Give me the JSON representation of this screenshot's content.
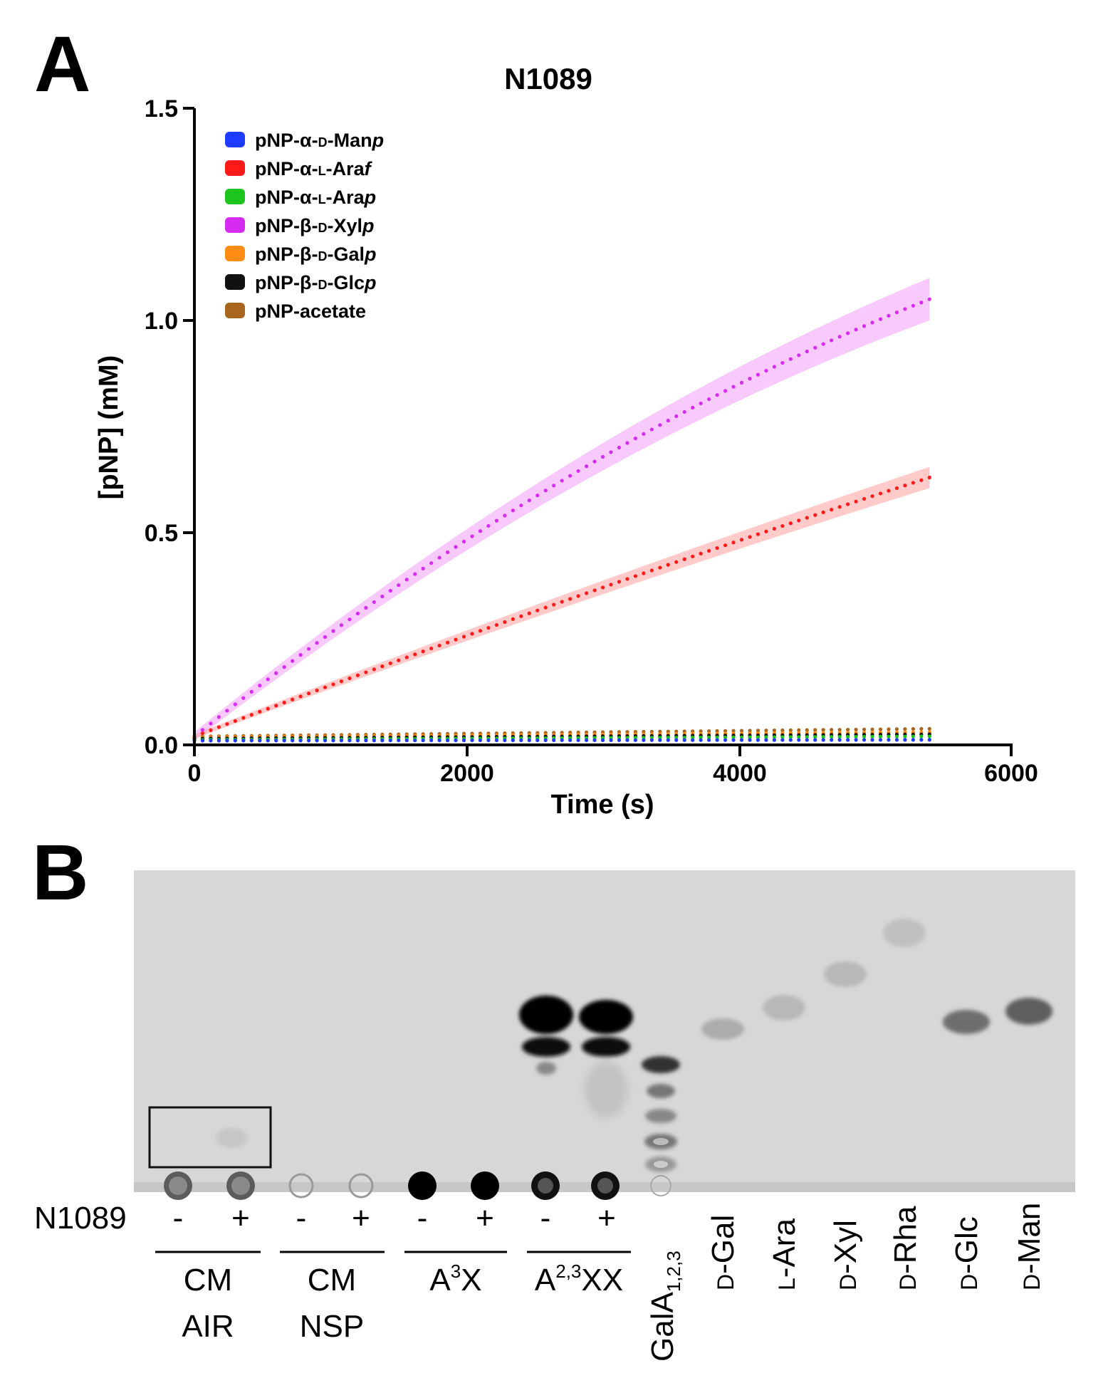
{
  "panel_a": {
    "letter": "A",
    "title": "N1089",
    "xlabel": "Time (s)",
    "ylabel": "[pNP] (mM)",
    "xticks": [
      "0",
      "2000",
      "4000",
      "6000"
    ],
    "yticks": [
      "0.0",
      "0.5",
      "1.0",
      "1.5"
    ]
  },
  "chart_data": {
    "type": "scatter",
    "title": "N1089",
    "xlabel": "Time (s)",
    "ylabel": "[pNP] (mM)",
    "xlim": [
      0,
      6000
    ],
    "ylim": [
      0,
      1.5
    ],
    "x_end": 5400,
    "legend_position": "top-left",
    "series": [
      {
        "name": "pNP-α-D-Manp",
        "parts": [
          "pNP-α-",
          "D",
          "-Man",
          "p",
          ""
        ],
        "color": "#1f3bff",
        "start": 0.01,
        "end": 0.012,
        "band": 0.003,
        "band_color": "#1f3bff",
        "curve": 0
      },
      {
        "name": "pNP-α-L-Araf",
        "parts": [
          "pNP-α-",
          "L",
          "-Ara",
          "f",
          ""
        ],
        "color": "#ff1a1a",
        "start": 0.02,
        "end": 0.63,
        "band": 0.025,
        "band_color": "#ff9e9e",
        "curve": 0.04
      },
      {
        "name": "pNP-α-L-Arap",
        "parts": [
          "pNP-α-",
          "L",
          "-Ara",
          "p",
          ""
        ],
        "color": "#1ec41e",
        "start": 0.012,
        "end": 0.02,
        "band": 0.003,
        "band_color": "#1ec41e",
        "curve": 0
      },
      {
        "name": "pNP-β-D-Xylp",
        "parts": [
          "pNP-β-",
          "D",
          "-Xyl",
          "p",
          ""
        ],
        "color": "#d62bf0",
        "start": 0.02,
        "end": 1.05,
        "band": 0.05,
        "band_color": "#f29cf7",
        "curve": 0.17
      },
      {
        "name": "pNP-β-D-Galp",
        "parts": [
          "pNP-β-",
          "D",
          "-Gal",
          "p",
          ""
        ],
        "color": "#ff8c14",
        "start": 0.018,
        "end": 0.03,
        "band": 0.003,
        "band_color": "#ff8c14",
        "curve": 0
      },
      {
        "name": "pNP-β-D-Glcp",
        "parts": [
          "pNP-β-",
          "D",
          "-Glc",
          "p",
          ""
        ],
        "color": "#111111",
        "start": 0.015,
        "end": 0.025,
        "band": 0.003,
        "band_color": "#111111",
        "curve": 0
      },
      {
        "name": "pNP-acetate",
        "parts": [
          "pNP-acetate",
          "",
          "",
          "",
          ""
        ],
        "color": "#a8651e",
        "start": 0.02,
        "end": 0.038,
        "band": 0.004,
        "band_color": "#a8651e",
        "curve": 0
      }
    ]
  },
  "panel_b": {
    "letter": "B",
    "enzyme_label": "N1089",
    "lane_signs": [
      "-",
      "+",
      "-",
      "+",
      "-",
      "+",
      "-",
      "+"
    ],
    "groups": [
      {
        "line1": "CM",
        "line2": "AIR"
      },
      {
        "line1": "CM",
        "line2": "NSP"
      },
      {
        "base": "A",
        "sup": "3",
        "rest": "X"
      },
      {
        "base": "A",
        "sup": "2,3",
        "rest": "XX"
      }
    ],
    "standards": [
      {
        "base": "GalA",
        "sub": "1,2,3"
      },
      {
        "prefix": "D",
        "name": "-Gal"
      },
      {
        "prefix": "L",
        "name": "-Ara"
      },
      {
        "prefix": "D",
        "name": "-Xyl"
      },
      {
        "prefix": "D",
        "name": "-Rha"
      },
      {
        "prefix": "D",
        "name": "-Glc"
      },
      {
        "prefix": "D",
        "name": "-Man"
      }
    ]
  }
}
